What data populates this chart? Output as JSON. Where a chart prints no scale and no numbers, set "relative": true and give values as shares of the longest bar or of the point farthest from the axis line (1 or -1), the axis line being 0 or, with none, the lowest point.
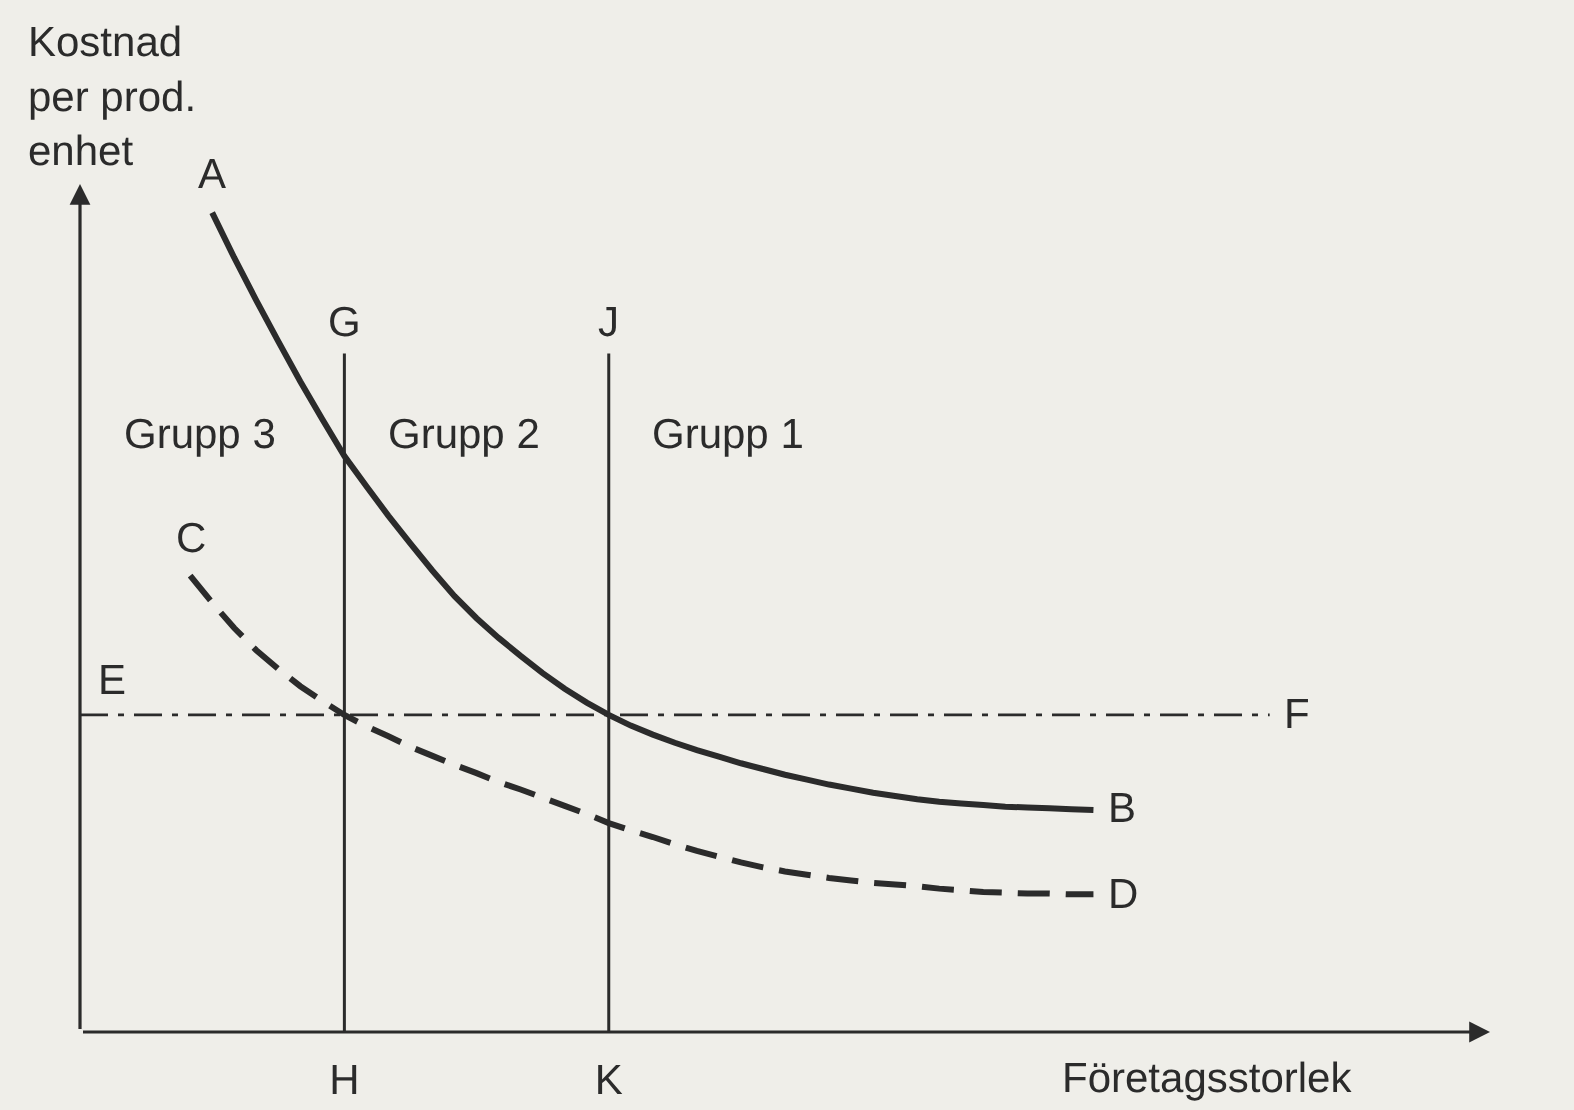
{
  "chart_data": {
    "type": "line",
    "relative": true,
    "xlabel": "Företagsstorlek",
    "ylabel": "Kostnad\nper prod.\nenhet",
    "categories": [
      null,
      null,
      null,
      null,
      null,
      null,
      null,
      null,
      null,
      null,
      null,
      null,
      "H",
      null,
      null,
      null,
      null,
      null,
      null,
      null,
      null,
      null,
      null,
      null,
      "K",
      null,
      null,
      null,
      null,
      null,
      null,
      null,
      null,
      null,
      null,
      null,
      null,
      null,
      null,
      null,
      null,
      null,
      null,
      null,
      null,
      null,
      null,
      null,
      null,
      null,
      null,
      null,
      null,
      null,
      null,
      null,
      null,
      null,
      null,
      null,
      null,
      null,
      null,
      null,
      null
    ],
    "series": [
      {
        "color": "#2b2b2b",
        "line_style": "solid",
        "values": [
          null,
          null,
          null,
          null,
          null,
          null,
          1,
          0.945,
          0.893,
          0.843,
          0.794,
          0.748,
          0.703,
          0.666,
          0.63,
          0.596,
          0.563,
          0.532,
          0.505,
          0.481,
          0.459,
          0.438,
          0.419,
          0.402,
          0.387,
          0.374,
          0.363,
          0.353,
          0.344,
          0.336,
          0.328,
          0.321,
          0.314,
          0.308,
          0.302,
          0.297,
          0.292,
          0.288,
          0.284,
          0.281,
          0.279,
          0.277,
          0.275,
          0.274,
          0.273,
          0.272,
          0.271,
          null,
          null,
          null,
          null,
          null,
          null,
          null,
          null,
          null,
          null,
          null,
          null,
          null,
          null,
          null,
          null,
          null,
          null
        ]
      },
      {
        "color": "#2b2b2b",
        "line_style": "dashed",
        "values": [
          null,
          null,
          null,
          null,
          null,
          0.557,
          0.524,
          0.493,
          0.466,
          0.443,
          0.422,
          0.404,
          0.387,
          0.373,
          0.361,
          0.348,
          0.337,
          0.326,
          0.316,
          0.305,
          0.296,
          0.286,
          0.276,
          0.266,
          0.255,
          0.246,
          0.238,
          0.229,
          0.221,
          0.214,
          0.207,
          0.201,
          0.196,
          0.192,
          0.188,
          0.185,
          0.182,
          0.18,
          0.178,
          0.175,
          0.173,
          0.171,
          0.17,
          0.169,
          0.169,
          0.168,
          0.168,
          null,
          null,
          null,
          null,
          null,
          null,
          null,
          null,
          null,
          null,
          null,
          null,
          null,
          null,
          null,
          null,
          null,
          null
        ]
      },
      {
        "color": "#2b2b2b",
        "line_style": "dashdot",
        "values": [
          0.387,
          0.387,
          0.387,
          0.387,
          0.387,
          0.387,
          0.387,
          0.387,
          0.387,
          0.387,
          0.387,
          0.387,
          0.387,
          0.387,
          0.387,
          0.387,
          0.387,
          0.387,
          0.387,
          0.387,
          0.387,
          0.387,
          0.387,
          0.387,
          0.387,
          0.387,
          0.387,
          0.387,
          0.387,
          0.387,
          0.387,
          0.387,
          0.387,
          0.387,
          0.387,
          0.387,
          0.387,
          0.387,
          0.387,
          0.387,
          0.387,
          0.387,
          0.387,
          0.387,
          0.387,
          0.387,
          0.387,
          0.387,
          0.387,
          0.387,
          0.387,
          0.387,
          0.387,
          0.387,
          0.387,
          null,
          null,
          null,
          null,
          null,
          null,
          null,
          null,
          null,
          null
        ]
      }
    ],
    "ref_lines": [
      {
        "axis": "x",
        "value": "H",
        "label": "G"
      },
      {
        "axis": "x",
        "value": "K",
        "label": "J"
      }
    ],
    "annotations": [
      "Grupp 3",
      "Grupp 2",
      "Grupp 1",
      {
        "text": "A",
        "y": 1
      },
      "B",
      {
        "text": "C",
        "y": 0.557
      },
      "D",
      {
        "text": "E",
        "y": 0.387
      },
      "F"
    ]
  }
}
